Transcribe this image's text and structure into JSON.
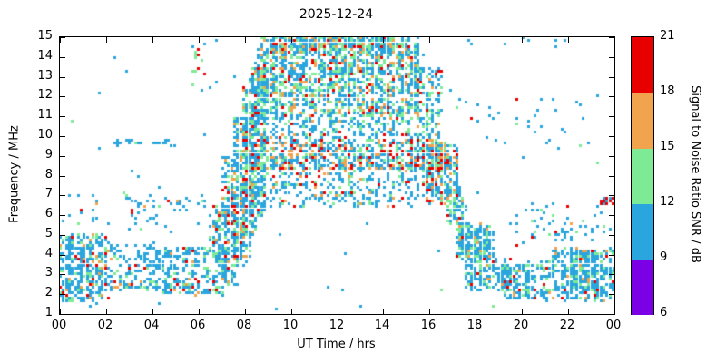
{
  "chart_data": {
    "type": "scatter",
    "title": "2025-12-24",
    "xlabel": "UT Time / hrs",
    "ylabel": "Frequency / MHz",
    "xlim": [
      0,
      24
    ],
    "ylim": [
      1,
      15
    ],
    "grid": false,
    "x_ticks": [
      {
        "v": 0,
        "label": "00"
      },
      {
        "v": 2,
        "label": "02"
      },
      {
        "v": 4,
        "label": "04"
      },
      {
        "v": 6,
        "label": "06"
      },
      {
        "v": 8,
        "label": "08"
      },
      {
        "v": 10,
        "label": "10"
      },
      {
        "v": 12,
        "label": "12"
      },
      {
        "v": 14,
        "label": "14"
      },
      {
        "v": 16,
        "label": "16"
      },
      {
        "v": 18,
        "label": "18"
      },
      {
        "v": 20,
        "label": "20"
      },
      {
        "v": 22,
        "label": "22"
      },
      {
        "v": 24,
        "label": "00"
      }
    ],
    "y_ticks": [
      1,
      2,
      3,
      4,
      5,
      6,
      7,
      8,
      9,
      10,
      11,
      12,
      13,
      14,
      15
    ],
    "colorbar": {
      "label": "Signal to Noise Ratio SNR / dB",
      "min": 6,
      "max": 21,
      "ticks": [
        6,
        9,
        12,
        15,
        18,
        21
      ],
      "segments": [
        {
          "from": 6,
          "to": 9,
          "color": "#7c00e6"
        },
        {
          "from": 9,
          "to": 12,
          "color": "#2aa5dd"
        },
        {
          "from": 12,
          "to": 15,
          "color": "#7deb96"
        },
        {
          "from": 15,
          "to": 18,
          "color": "#f2a34d"
        },
        {
          "from": 18,
          "to": 21,
          "color": "#e80000"
        }
      ]
    },
    "palette": [
      "#7c00e6",
      "#2aa5dd",
      "#7deb96",
      "#f2a34d",
      "#e80000"
    ],
    "point_size": 3,
    "seed": 42,
    "quantize": {
      "t": 0.13,
      "f": 0.14
    },
    "regions": [
      {
        "t": [
          0,
          2
        ],
        "f": [
          1.6,
          5
        ],
        "n": 380,
        "w": [
          0,
          0.72,
          0.16,
          0.07,
          0.05
        ]
      },
      {
        "t": [
          0,
          6.5
        ],
        "f": [
          5.2,
          7.2
        ],
        "n": 45,
        "w": [
          0,
          0.8,
          0.1,
          0.05,
          0.05
        ]
      },
      {
        "t": [
          2,
          4.2
        ],
        "f": [
          2.2,
          4.6
        ],
        "n": 160,
        "w": [
          0,
          0.74,
          0.16,
          0.06,
          0.04
        ]
      },
      {
        "t": [
          4.2,
          6.6
        ],
        "f": [
          2,
          4.4
        ],
        "n": 230,
        "w": [
          0,
          0.72,
          0.16,
          0.07,
          0.05
        ]
      },
      {
        "t": [
          2.3,
          5
        ],
        "f": [
          9.55,
          9.85
        ],
        "n": 26,
        "w": [
          0,
          0.9,
          0.1,
          0,
          0
        ]
      },
      {
        "t": [
          3,
          6.3
        ],
        "f": [
          6.3,
          6.8
        ],
        "n": 30,
        "w": [
          0,
          0.8,
          0.1,
          0.05,
          0.05
        ]
      },
      {
        "t": [
          5.6,
          6.4
        ],
        "f": [
          12.5,
          14.9
        ],
        "n": 12,
        "w": [
          0,
          0.5,
          0.3,
          0,
          0.2
        ]
      },
      {
        "t": [
          6.5,
          7.2
        ],
        "f": [
          2,
          6.5
        ],
        "n": 140,
        "w": [
          0,
          0.6,
          0.2,
          0.1,
          0.1
        ]
      },
      {
        "t": [
          7,
          7.7
        ],
        "f": [
          2.5,
          9
        ],
        "n": 200,
        "w": [
          0,
          0.6,
          0.2,
          0.1,
          0.1
        ]
      },
      {
        "t": [
          7.5,
          8.2
        ],
        "f": [
          3.5,
          11
        ],
        "n": 240,
        "w": [
          0,
          0.58,
          0.22,
          0.1,
          0.1
        ]
      },
      {
        "t": [
          7.9,
          8.5
        ],
        "f": [
          5,
          12.5
        ],
        "n": 230,
        "w": [
          0,
          0.55,
          0.25,
          0.1,
          0.1
        ]
      },
      {
        "t": [
          8.2,
          8.9
        ],
        "f": [
          6,
          13.5
        ],
        "n": 260,
        "w": [
          0,
          0.52,
          0.25,
          0.12,
          0.11
        ]
      },
      {
        "t": [
          8.5,
          15.5
        ],
        "f": [
          11,
          15
        ],
        "n": 1500,
        "w": [
          0,
          0.52,
          0.27,
          0.13,
          0.08
        ]
      },
      {
        "t": [
          9.5,
          14.5
        ],
        "f": [
          14.3,
          15
        ],
        "n": 250,
        "w": [
          0,
          0.5,
          0.28,
          0.14,
          0.08
        ]
      },
      {
        "t": [
          8.3,
          16.7
        ],
        "f": [
          8.3,
          9.8
        ],
        "n": 750,
        "w": [
          0,
          0.5,
          0.18,
          0.16,
          0.16
        ]
      },
      {
        "t": [
          8.7,
          15.2
        ],
        "f": [
          9.9,
          11
        ],
        "n": 220,
        "w": [
          0,
          0.68,
          0.18,
          0.08,
          0.06
        ]
      },
      {
        "t": [
          9,
          15.5
        ],
        "f": [
          6.4,
          8.2
        ],
        "n": 260,
        "w": [
          0,
          0.7,
          0.15,
          0.08,
          0.07
        ]
      },
      {
        "t": [
          15.3,
          16.5
        ],
        "f": [
          9.8,
          13.5
        ],
        "n": 160,
        "w": [
          0,
          0.55,
          0.25,
          0.1,
          0.1
        ]
      },
      {
        "t": [
          15.7,
          17.2
        ],
        "f": [
          6.6,
          9.6
        ],
        "n": 320,
        "w": [
          0,
          0.42,
          0.18,
          0.18,
          0.22
        ]
      },
      {
        "t": [
          16.7,
          17.5
        ],
        "f": [
          5.5,
          7.5
        ],
        "n": 90,
        "w": [
          0,
          0.6,
          0.2,
          0.1,
          0.1
        ]
      },
      {
        "t": [
          17.2,
          18.7
        ],
        "f": [
          3.8,
          5.6
        ],
        "n": 230,
        "w": [
          0,
          0.7,
          0.18,
          0.07,
          0.05
        ]
      },
      {
        "t": [
          17.5,
          19.5
        ],
        "f": [
          2.2,
          3.8
        ],
        "n": 160,
        "w": [
          0,
          0.74,
          0.16,
          0.06,
          0.04
        ]
      },
      {
        "t": [
          19,
          21
        ],
        "f": [
          1.8,
          3.6
        ],
        "n": 170,
        "w": [
          0,
          0.74,
          0.16,
          0.06,
          0.04
        ]
      },
      {
        "t": [
          21,
          24
        ],
        "f": [
          1.7,
          4.3
        ],
        "n": 330,
        "w": [
          0,
          0.72,
          0.16,
          0.07,
          0.05
        ]
      },
      {
        "t": [
          22,
          23.3
        ],
        "f": [
          2.2,
          4.2
        ],
        "n": 150,
        "w": [
          0,
          0.7,
          0.18,
          0.07,
          0.05
        ]
      },
      {
        "t": [
          19.5,
          24
        ],
        "f": [
          4.5,
          6.5
        ],
        "n": 60,
        "w": [
          0,
          0.78,
          0.12,
          0.05,
          0.05
        ]
      },
      {
        "t": [
          23.4,
          24
        ],
        "f": [
          6.55,
          6.85
        ],
        "n": 28,
        "w": [
          0,
          0.2,
          0,
          0.1,
          0.7
        ]
      },
      {
        "t": [
          17,
          23
        ],
        "f": [
          9.5,
          12
        ],
        "n": 25,
        "w": [
          0,
          0.8,
          0.1,
          0.05,
          0.05
        ]
      },
      {
        "t": [
          17,
          22
        ],
        "f": [
          14.6,
          15
        ],
        "n": 8,
        "w": [
          0,
          0.7,
          0.2,
          0,
          0.1
        ]
      },
      {
        "t": [
          0,
          24
        ],
        "f": [
          1,
          15
        ],
        "n": 70,
        "w": [
          0,
          0.85,
          0.1,
          0,
          0.05
        ]
      }
    ]
  }
}
